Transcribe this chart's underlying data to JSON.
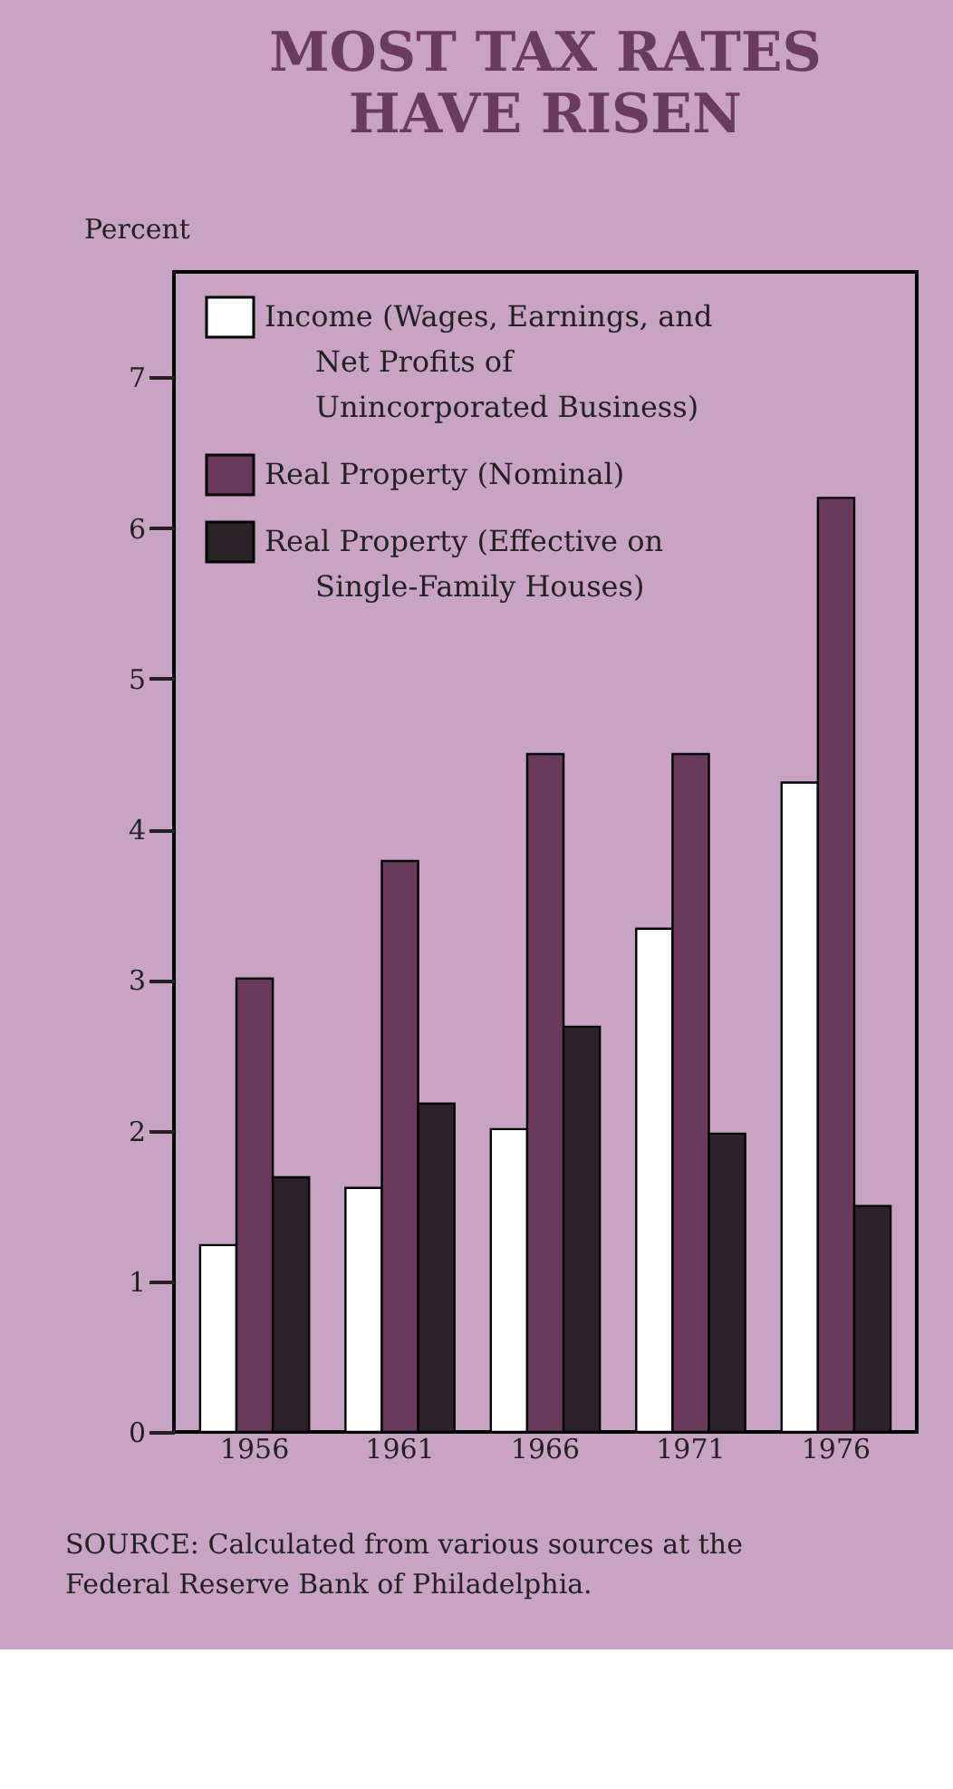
{
  "chart_data": {
    "type": "bar",
    "title": "MOST TAX RATES HAVE RISEN",
    "ylabel": "Percent",
    "categories": [
      "1956",
      "1961",
      "1966",
      "1971",
      "1976"
    ],
    "series": [
      {
        "name": "Income (Wages, Earnings, and Net Profits of Unincorporated Business)",
        "color": "#ffffff",
        "values": [
          1.24,
          1.62,
          2.01,
          3.34,
          4.31
        ]
      },
      {
        "name": "Real Property (Nominal)",
        "color": "#6a3a5c",
        "values": [
          3.01,
          3.79,
          4.5,
          4.5,
          6.2
        ]
      },
      {
        "name": "Real Property (Effective on Single-Family Houses)",
        "color": "#2a2428",
        "values": [
          1.69,
          2.18,
          2.69,
          1.98,
          1.5
        ]
      }
    ],
    "ylim": [
      0,
      7.7
    ],
    "yticks": [
      0,
      1,
      2,
      3,
      4,
      5,
      6,
      7
    ],
    "grid": false,
    "legend": "top left",
    "annotations": [
      "SOURCE: Calculated from various sources at the Federal Reserve Bank of Philadelphia."
    ]
  }
}
